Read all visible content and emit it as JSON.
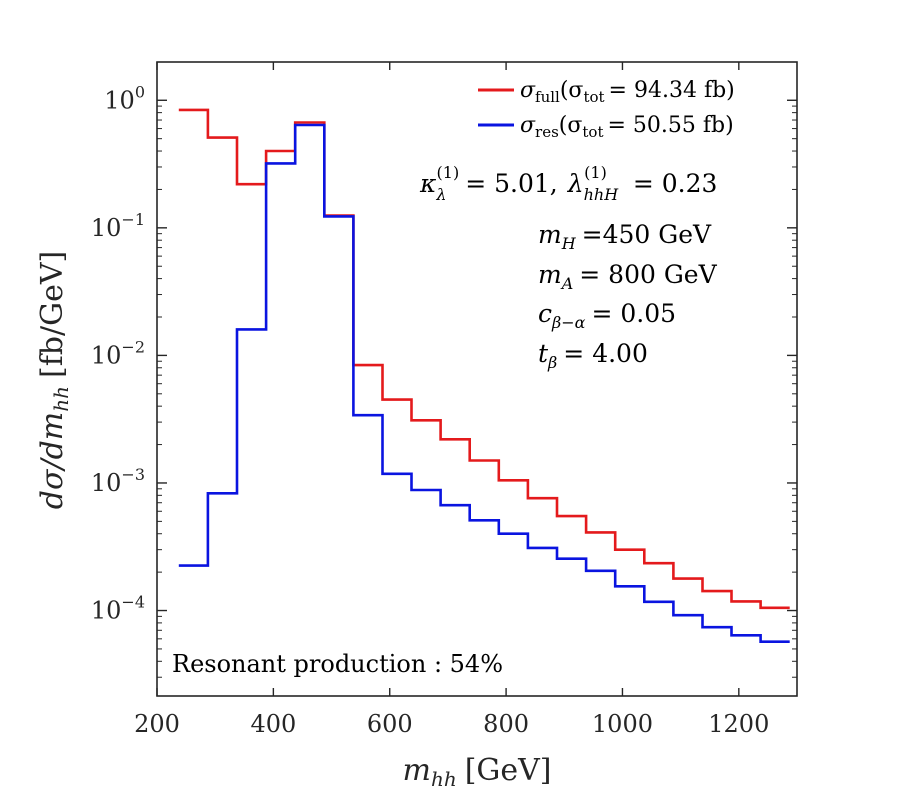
{
  "chart_data": {
    "type": "line",
    "subtype": "step-histogram",
    "xlabel_var": "m",
    "xlabel_sub": "hh",
    "xlabel_unit": "[GeV]",
    "ylabel_num": "dσ/dm",
    "ylabel_sub": "hh",
    "ylabel_unit": "[fb/GeV]",
    "xlim": [
      200,
      1300
    ],
    "ylim_log10": [
      -4.67,
      0.3
    ],
    "yscale": "log",
    "x_ticks": [
      200,
      400,
      600,
      800,
      1000,
      1200
    ],
    "x_tick_labels": [
      "200",
      "400",
      "600",
      "800",
      "1000",
      "1200"
    ],
    "y_ticks_exp": [
      0,
      -1,
      -2,
      -3,
      -4
    ],
    "y_tick_base": "10",
    "y_tick_exps": [
      "0",
      "−1",
      "−2",
      "−3",
      "−4"
    ],
    "bin_edges": [
      237.5,
      287.5,
      337.5,
      387.5,
      437.5,
      487.5,
      537.5,
      587.5,
      637.5,
      687.5,
      737.5,
      787.5,
      837.5,
      887.5,
      937.5,
      987.5,
      1037.5,
      1087.5,
      1137.5,
      1187.5,
      1237.5,
      1287.5
    ],
    "series": [
      {
        "name": "sigma_full",
        "legend_sym": "σ",
        "legend_sub": "full",
        "legend_tot": "(σ",
        "legend_tot_sub": "tot",
        "legend_val": "= 94.34 fb)",
        "color": "#e41a1c",
        "values": [
          0.84,
          0.51,
          0.22,
          0.4,
          0.67,
          0.125,
          0.0084,
          0.0045,
          0.0031,
          0.0022,
          0.0015,
          0.00105,
          0.00076,
          0.00055,
          0.00041,
          0.0003,
          0.000235,
          0.000178,
          0.000142,
          0.000118,
          0.000105
        ]
      },
      {
        "name": "sigma_res",
        "legend_sym": "σ",
        "legend_sub": "res",
        "legend_tot": "(σ",
        "legend_tot_sub": "tot",
        "legend_val": "= 50.55 fb)",
        "color": "#0a14e0",
        "values": [
          0.000225,
          0.00083,
          0.016,
          0.32,
          0.64,
          0.123,
          0.0034,
          0.00118,
          0.00088,
          0.00067,
          0.00051,
          0.0004,
          0.00031,
          0.000255,
          0.000205,
          0.000155,
          0.000117,
          9.2e-05,
          7.4e-05,
          6.4e-05,
          5.7e-05
        ]
      }
    ],
    "annotations": {
      "kappa": {
        "sym": "κ",
        "sub": "λ",
        "sup": "(1)",
        "val": "= 5.01,"
      },
      "lambda": {
        "sym": "λ",
        "sub": "hhH",
        "sup": "(1)",
        "val": "= 0.23"
      },
      "mH": {
        "sym": "m",
        "sub": "H",
        "val": "=450 GeV"
      },
      "mA": {
        "sym": "m",
        "sub": "A",
        "val": "= 800 GeV"
      },
      "cba": {
        "sym": "c",
        "sub": "β−α",
        "val": "= 0.05"
      },
      "tb": {
        "sym": "t",
        "sub": "β",
        "val": "= 4.00"
      },
      "resonant": "Resonant production : 54%"
    },
    "legend_position": "top-right",
    "grid": false
  }
}
